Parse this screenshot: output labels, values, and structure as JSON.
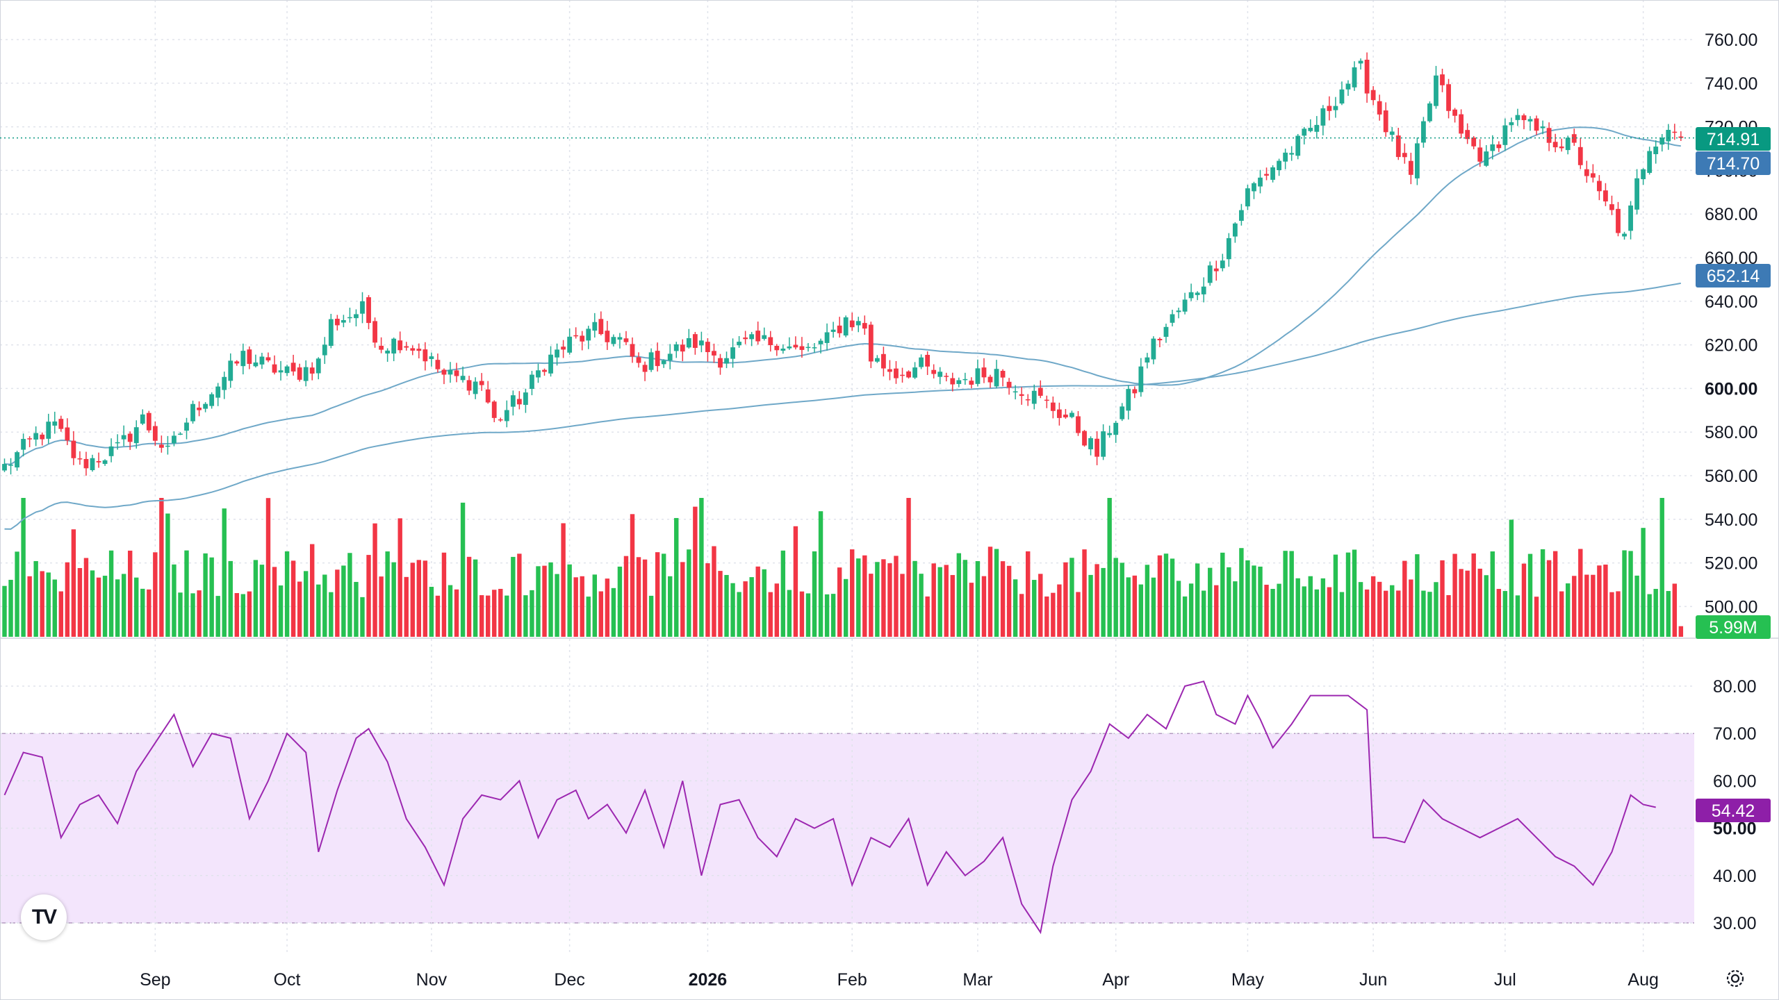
{
  "chart_data": {
    "type": "candlestick",
    "price_axis": {
      "ticks": [
        "760.00",
        "740.00",
        "720.00",
        "700.00",
        "680.00",
        "660.00",
        "640.00",
        "620.00",
        "600.00",
        "580.00",
        "560.00",
        "540.00",
        "520.00",
        "500.00"
      ],
      "ylim": [
        492,
        768
      ],
      "bold_tick": "600.00"
    },
    "rsi_axis": {
      "ticks": [
        "80.00",
        "70.00",
        "60.00",
        "50.00",
        "40.00",
        "30.00"
      ],
      "ylim": [
        27,
        85
      ],
      "bold_tick": "50.00",
      "band": [
        30,
        70
      ]
    },
    "x_labels": [
      {
        "label": "Sep",
        "bar": 24
      },
      {
        "label": "Oct",
        "bar": 45
      },
      {
        "label": "Nov",
        "bar": 68
      },
      {
        "label": "Dec",
        "bar": 90
      },
      {
        "label": "2026",
        "bar": 112,
        "bold": true
      },
      {
        "label": "Feb",
        "bar": 135
      },
      {
        "label": "Mar",
        "bar": 155
      },
      {
        "label": "Apr",
        "bar": 177
      },
      {
        "label": "May",
        "bar": 198
      },
      {
        "label": "Jun",
        "bar": 218
      },
      {
        "label": "Jul",
        "bar": 239
      },
      {
        "label": "Aug",
        "bar": 261
      }
    ],
    "badges": {
      "last_price": "714.91",
      "sma_short": "714.70",
      "sma_long": "652.14",
      "volume": "5.99M",
      "rsi": "54.42"
    },
    "colors": {
      "up": "#22ab94",
      "up_volume": "#26c052",
      "down": "#f23645",
      "ma": "#6fa8c8",
      "ma_badge": "#3d7ab5",
      "rsi_line": "#9c27b0",
      "rsi_band": "#f3e5fc",
      "rsi_badge": "#8e1fa8",
      "last_badge": "#089981",
      "grid": "#e0e3eb"
    },
    "anchors": [
      [
        0,
        564
      ],
      [
        5,
        578
      ],
      [
        8,
        583
      ],
      [
        12,
        565
      ],
      [
        18,
        572
      ],
      [
        22,
        586
      ],
      [
        26,
        570
      ],
      [
        30,
        590
      ],
      [
        34,
        602
      ],
      [
        38,
        615
      ],
      [
        42,
        610
      ],
      [
        46,
        606
      ],
      [
        50,
        612
      ],
      [
        52,
        630
      ],
      [
        57,
        636
      ],
      [
        60,
        620
      ],
      [
        63,
        622
      ],
      [
        66,
        618
      ],
      [
        70,
        606
      ],
      [
        76,
        602
      ],
      [
        78,
        585
      ],
      [
        83,
        598
      ],
      [
        86,
        612
      ],
      [
        90,
        621
      ],
      [
        94,
        626
      ],
      [
        98,
        622
      ],
      [
        101,
        610
      ],
      [
        104,
        614
      ],
      [
        110,
        621
      ],
      [
        114,
        614
      ],
      [
        118,
        620
      ],
      [
        123,
        622
      ],
      [
        127,
        616
      ],
      [
        131,
        622
      ],
      [
        134,
        632
      ],
      [
        137,
        628
      ],
      [
        138,
        614
      ],
      [
        142,
        607
      ],
      [
        146,
        610
      ],
      [
        150,
        603
      ],
      [
        154,
        605
      ],
      [
        158,
        608
      ],
      [
        162,
        600
      ],
      [
        166,
        593
      ],
      [
        170,
        585
      ],
      [
        174,
        570
      ],
      [
        176,
        582
      ],
      [
        180,
        600
      ],
      [
        182,
        616
      ],
      [
        186,
        632
      ],
      [
        190,
        646
      ],
      [
        194,
        662
      ],
      [
        198,
        690
      ],
      [
        203,
        705
      ],
      [
        206,
        712
      ],
      [
        210,
        725
      ],
      [
        213,
        738
      ],
      [
        216,
        746
      ],
      [
        218,
        733
      ],
      [
        222,
        708
      ],
      [
        224,
        696
      ],
      [
        226,
        720
      ],
      [
        228,
        742
      ],
      [
        232,
        716
      ],
      [
        236,
        705
      ],
      [
        240,
        724
      ],
      [
        244,
        718
      ],
      [
        247,
        714
      ],
      [
        250,
        710
      ],
      [
        254,
        688
      ],
      [
        256,
        680
      ],
      [
        258,
        668
      ],
      [
        260,
        694
      ],
      [
        262,
        712
      ],
      [
        265,
        720
      ],
      [
        267,
        714.9
      ]
    ],
    "volume_ylim": [
      0,
      4.8
    ],
    "rsi_anchors": [
      [
        0,
        57
      ],
      [
        3,
        66
      ],
      [
        6,
        65
      ],
      [
        9,
        48
      ],
      [
        12,
        55
      ],
      [
        15,
        57
      ],
      [
        18,
        51
      ],
      [
        21,
        62
      ],
      [
        24,
        68
      ],
      [
        27,
        74
      ],
      [
        30,
        63
      ],
      [
        33,
        70
      ],
      [
        36,
        69
      ],
      [
        39,
        52
      ],
      [
        42,
        60
      ],
      [
        45,
        70
      ],
      [
        48,
        66
      ],
      [
        50,
        45
      ],
      [
        53,
        58
      ],
      [
        56,
        69
      ],
      [
        58,
        71
      ],
      [
        61,
        64
      ],
      [
        64,
        52
      ],
      [
        67,
        46
      ],
      [
        70,
        38
      ],
      [
        73,
        52
      ],
      [
        76,
        57
      ],
      [
        79,
        56
      ],
      [
        82,
        60
      ],
      [
        85,
        48
      ],
      [
        88,
        56
      ],
      [
        91,
        58
      ],
      [
        93,
        52
      ],
      [
        96,
        55
      ],
      [
        99,
        49
      ],
      [
        102,
        58
      ],
      [
        105,
        46
      ],
      [
        108,
        60
      ],
      [
        111,
        40
      ],
      [
        114,
        55
      ],
      [
        117,
        56
      ],
      [
        120,
        48
      ],
      [
        123,
        44
      ],
      [
        126,
        52
      ],
      [
        129,
        50
      ],
      [
        132,
        52
      ],
      [
        135,
        38
      ],
      [
        138,
        48
      ],
      [
        141,
        46
      ],
      [
        144,
        52
      ],
      [
        147,
        38
      ],
      [
        150,
        45
      ],
      [
        153,
        40
      ],
      [
        156,
        43
      ],
      [
        159,
        48
      ],
      [
        162,
        34
      ],
      [
        165,
        28
      ],
      [
        167,
        42
      ],
      [
        170,
        56
      ],
      [
        173,
        62
      ],
      [
        176,
        72
      ],
      [
        179,
        69
      ],
      [
        182,
        74
      ],
      [
        185,
        71
      ],
      [
        188,
        80
      ],
      [
        191,
        81
      ],
      [
        193,
        74
      ],
      [
        196,
        72
      ],
      [
        198,
        78
      ],
      [
        200,
        73
      ],
      [
        202,
        67
      ],
      [
        205,
        72
      ],
      [
        208,
        78
      ],
      [
        211,
        78
      ],
      [
        214,
        78
      ],
      [
        217,
        75
      ],
      [
        218,
        48
      ],
      [
        220,
        48
      ],
      [
        223,
        47
      ],
      [
        226,
        56
      ],
      [
        229,
        52
      ],
      [
        232,
        50
      ],
      [
        235,
        48
      ],
      [
        238,
        50
      ],
      [
        241,
        52
      ],
      [
        244,
        48
      ],
      [
        247,
        44
      ],
      [
        250,
        42
      ],
      [
        253,
        38
      ],
      [
        256,
        45
      ],
      [
        259,
        57
      ],
      [
        261,
        55
      ],
      [
        263,
        54.42
      ]
    ]
  }
}
